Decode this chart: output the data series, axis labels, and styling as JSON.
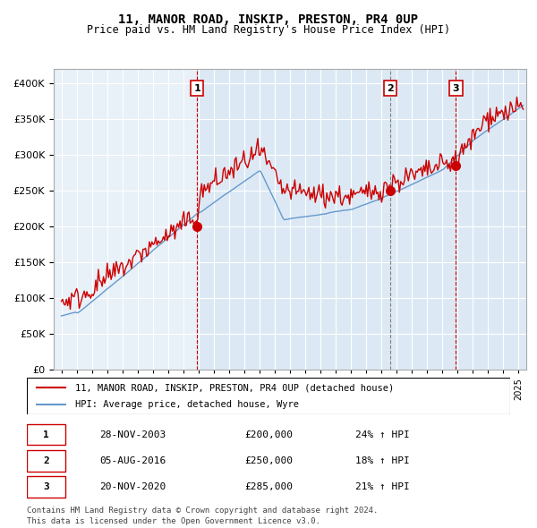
{
  "title": "11, MANOR ROAD, INSKIP, PRESTON, PR4 0UP",
  "subtitle": "Price paid vs. HM Land Registry's House Price Index (HPI)",
  "legend_line1": "11, MANOR ROAD, INSKIP, PRESTON, PR4 0UP (detached house)",
  "legend_line2": "HPI: Average price, detached house, Wyre",
  "footer1": "Contains HM Land Registry data © Crown copyright and database right 2024.",
  "footer2": "This data is licensed under the Open Government Licence v3.0.",
  "transactions": [
    {
      "num": 1,
      "date": "28-NOV-2003",
      "price": 200000,
      "pct": "24%",
      "dir": "↑",
      "x_year": 2003.91
    },
    {
      "num": 2,
      "date": "05-AUG-2016",
      "price": 250000,
      "pct": "18%",
      "dir": "↑",
      "x_year": 2016.59
    },
    {
      "num": 3,
      "date": "20-NOV-2020",
      "price": 285000,
      "pct": "21%",
      "dir": "↑",
      "x_year": 2020.89
    }
  ],
  "vline1_x": 2003.91,
  "vline2_x": 2016.59,
  "vline3_x": 2020.89,
  "bg_color": "#dce9f5",
  "plot_bg": "#e8f0f8",
  "red_color": "#cc0000",
  "blue_color": "#6699cc",
  "ylim": [
    0,
    420000
  ],
  "xlim_start": 1994.5,
  "xlim_end": 2025.5
}
